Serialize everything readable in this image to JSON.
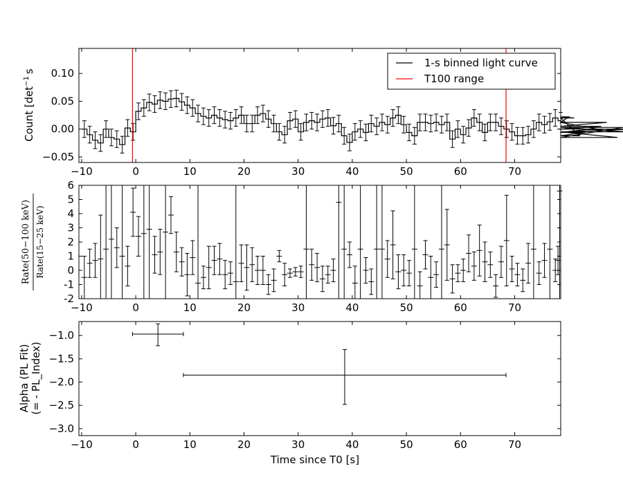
{
  "chart_data": [
    {
      "type": "line",
      "ylabel": "Count [det$^{-1}$ s$^{-1}$]",
      "ylabel_main": "Count [det",
      "ylabel_sup": "−1",
      "ylabel_tail": "s",
      "xlim": [
        -10.5,
        78.5
      ],
      "ylim": [
        -0.06,
        0.145
      ],
      "xticks": [
        -10,
        0,
        10,
        20,
        30,
        40,
        50,
        60,
        70
      ],
      "yticks": [
        0.1,
        0.05,
        0.0,
        -0.05
      ],
      "ytick_labels": [
        "0.10",
        "0.05",
        "0.00",
        "−0.05"
      ],
      "legend": [
        "1-s binned light curve",
        "T100 range"
      ],
      "legend_position": "top-right",
      "t100_range": [
        -0.6,
        68.4
      ],
      "bin_start": -10,
      "counts": [
        0.0,
        -0.01,
        -0.02,
        -0.025,
        0.0,
        -0.015,
        -0.018,
        -0.028,
        0.002,
        -0.005,
        0.032,
        0.038,
        0.048,
        0.045,
        0.052,
        0.05,
        0.054,
        0.055,
        0.049,
        0.043,
        0.038,
        0.028,
        0.023,
        0.02,
        0.025,
        0.02,
        0.017,
        0.015,
        0.02,
        0.025,
        0.01,
        0.01,
        0.025,
        0.028,
        0.018,
        0.01,
        -0.005,
        -0.01,
        0.015,
        0.018,
        -0.005,
        0.012,
        0.015,
        0.012,
        0.018,
        0.02,
        0.006,
        0.01,
        -0.012,
        -0.024,
        -0.005,
        0.0,
        -0.006,
        0.01,
        0.005,
        0.012,
        0.008,
        0.02,
        0.025,
        0.008,
        -0.006,
        -0.012,
        0.012,
        0.012,
        0.01,
        0.012,
        0.008,
        0.012,
        -0.018,
        0.0,
        -0.01,
        0.002,
        0.02,
        0.012,
        -0.006,
        0.012,
        0.012,
        0.005,
        0.0,
        -0.005,
        -0.012,
        -0.012,
        -0.01,
        0.0,
        0.012,
        0.008,
        0.013,
        0.02,
        0.015,
        0.012,
        0.022,
        0.02,
        -0.012,
        -0.006,
        0.0,
        0.0,
        0.005,
        0.012,
        -0.005,
        -0.015,
        0.003,
        -0.005,
        0.0
      ],
      "errors": 0.015
    },
    {
      "type": "scatter",
      "ylabel_numerator": "Rate(50−100 keV)",
      "ylabel_denominator": "Rate(15−25 keV)",
      "xlim": [
        -10.5,
        78.5
      ],
      "ylim": [
        -2,
        6
      ],
      "xticks": [
        -10,
        0,
        10,
        20,
        30,
        40,
        50,
        60,
        70
      ],
      "yticks": [
        6,
        5,
        4,
        3,
        2,
        1,
        0,
        -1,
        -2
      ],
      "points": [
        {
          "x": -9.5,
          "y": -0.5,
          "e": 1.5
        },
        {
          "x": -8.5,
          "y": 0.5,
          "e": 1.0
        },
        {
          "x": -7.5,
          "y": 0.7,
          "e": 1.2
        },
        {
          "x": -6.5,
          "y": 0.8,
          "e": 3.1
        },
        {
          "x": -5.5,
          "y": 1.5,
          "e": 8
        },
        {
          "x": -4.5,
          "y": 2.2,
          "e": 8
        },
        {
          "x": -3.5,
          "y": 1.6,
          "e": 1.4
        },
        {
          "x": -2.5,
          "y": 1.0,
          "e": 8
        },
        {
          "x": -1.5,
          "y": 0.3,
          "e": 1.4
        },
        {
          "x": -0.5,
          "y": 4.1,
          "e": 1.7
        },
        {
          "x": 0.5,
          "y": 2.4,
          "e": 1.4
        },
        {
          "x": 1.5,
          "y": 2.6,
          "e": 8
        },
        {
          "x": 2.5,
          "y": 2.9,
          "e": 8
        },
        {
          "x": 3.5,
          "y": 1.1,
          "e": 1.3
        },
        {
          "x": 4.5,
          "y": 1.3,
          "e": 1.6
        },
        {
          "x": 5.5,
          "y": 2.7,
          "e": 8
        },
        {
          "x": 6.5,
          "y": 3.9,
          "e": 1.3
        },
        {
          "x": 7.5,
          "y": 1.3,
          "e": 1.4
        },
        {
          "x": 8.5,
          "y": 0.6,
          "e": 1.0
        },
        {
          "x": 9.5,
          "y": -0.3,
          "e": 1.5
        },
        {
          "x": 10.5,
          "y": 0.9,
          "e": 1.2
        },
        {
          "x": 11.5,
          "y": -0.9,
          "e": 8
        },
        {
          "x": 12.5,
          "y": -0.5,
          "e": 0.8
        },
        {
          "x": 13.5,
          "y": 0.2,
          "e": 1.5
        },
        {
          "x": 14.5,
          "y": 0.7,
          "e": 1.0
        },
        {
          "x": 15.5,
          "y": 0.8,
          "e": 1.1
        },
        {
          "x": 16.5,
          "y": -0.3,
          "e": 1.0
        },
        {
          "x": 17.5,
          "y": -0.2,
          "e": 0.8
        },
        {
          "x": 18.5,
          "y": -0.8,
          "e": 8
        },
        {
          "x": 19.5,
          "y": 0.5,
          "e": 1.3
        },
        {
          "x": 20.5,
          "y": 0.2,
          "e": 1.6
        },
        {
          "x": 21.5,
          "y": 0.4,
          "e": 1.2
        },
        {
          "x": 22.5,
          "y": 0.0,
          "e": 1.0
        },
        {
          "x": 23.5,
          "y": 0.0,
          "e": 1.0
        },
        {
          "x": 24.5,
          "y": -1.0,
          "e": 0.7
        },
        {
          "x": 25.5,
          "y": -0.7,
          "e": 0.8
        },
        {
          "x": 26.5,
          "y": 1.0,
          "e": 0.4
        },
        {
          "x": 27.5,
          "y": -0.3,
          "e": 0.8
        },
        {
          "x": 28.5,
          "y": -0.2,
          "e": 0.3
        },
        {
          "x": 29.5,
          "y": -0.1,
          "e": 0.3
        },
        {
          "x": 30.5,
          "y": -0.1,
          "e": 0.4
        },
        {
          "x": 31.5,
          "y": 1.5,
          "e": 8
        },
        {
          "x": 32.5,
          "y": 0.4,
          "e": 1.1
        },
        {
          "x": 33.5,
          "y": 0.2,
          "e": 1.0
        },
        {
          "x": 34.5,
          "y": -0.6,
          "e": 0.9
        },
        {
          "x": 35.5,
          "y": -0.3,
          "e": 0.6
        },
        {
          "x": 36.5,
          "y": 0.0,
          "e": 0.8
        },
        {
          "x": 37.5,
          "y": 4.8,
          "e": 8
        },
        {
          "x": 38.5,
          "y": 1.5,
          "e": 8
        },
        {
          "x": 39.5,
          "y": 1.1,
          "e": 0.9
        },
        {
          "x": 40.5,
          "y": -0.9,
          "e": 1.2
        },
        {
          "x": 41.5,
          "y": 1.5,
          "e": 8
        },
        {
          "x": 42.5,
          "y": 0.0,
          "e": 0.9
        },
        {
          "x": 43.5,
          "y": -0.8,
          "e": 0.9
        },
        {
          "x": 44.5,
          "y": 1.5,
          "e": 8
        },
        {
          "x": 45.5,
          "y": 1.5,
          "e": 8
        },
        {
          "x": 46.5,
          "y": 0.8,
          "e": 1.3
        },
        {
          "x": 47.5,
          "y": 1.8,
          "e": 2.4
        },
        {
          "x": 48.5,
          "y": -0.1,
          "e": 1.2
        },
        {
          "x": 49.5,
          "y": 0.0,
          "e": 1.1
        },
        {
          "x": 50.5,
          "y": -0.2,
          "e": 0.9
        },
        {
          "x": 51.5,
          "y": 1.5,
          "e": 8
        },
        {
          "x": 52.5,
          "y": -1.1,
          "e": 1.0
        },
        {
          "x": 53.5,
          "y": 1.1,
          "e": 1.0
        },
        {
          "x": 54.5,
          "y": -0.5,
          "e": 1.5
        },
        {
          "x": 55.5,
          "y": -0.3,
          "e": 0.9
        },
        {
          "x": 56.5,
          "y": 1.5,
          "e": 8
        },
        {
          "x": 57.5,
          "y": 1.8,
          "e": 2.5
        },
        {
          "x": 58.5,
          "y": -0.6,
          "e": 1.0
        },
        {
          "x": 59.5,
          "y": -0.2,
          "e": 0.6
        },
        {
          "x": 60.5,
          "y": 0.0,
          "e": 0.8
        },
        {
          "x": 61.5,
          "y": 1.2,
          "e": 1.3
        },
        {
          "x": 62.5,
          "y": 0.3,
          "e": 1.0
        },
        {
          "x": 63.5,
          "y": 1.4,
          "e": 1.8
        },
        {
          "x": 64.5,
          "y": 0.6,
          "e": 1.4
        },
        {
          "x": 65.5,
          "y": 0.4,
          "e": 0.9
        },
        {
          "x": 66.5,
          "y": -1.1,
          "e": 0.8
        },
        {
          "x": 67.5,
          "y": 0.6,
          "e": 1.1
        },
        {
          "x": 68.5,
          "y": 2.1,
          "e": 3.2
        },
        {
          "x": 69.5,
          "y": 0.1,
          "e": 0.9
        },
        {
          "x": 70.5,
          "y": -0.3,
          "e": 0.8
        },
        {
          "x": 71.5,
          "y": -0.7,
          "e": 0.8
        },
        {
          "x": 72.5,
          "y": 0.5,
          "e": 1.4
        },
        {
          "x": 73.5,
          "y": 1.5,
          "e": 8
        },
        {
          "x": 74.5,
          "y": -0.2,
          "e": 0.8
        },
        {
          "x": 75.5,
          "y": 0.7,
          "e": 1.2
        },
        {
          "x": 76.5,
          "y": 1.5,
          "e": 8
        },
        {
          "x": 77.5,
          "y": 0.0,
          "e": 0.8
        },
        {
          "x": 78.0,
          "y": 0.7,
          "e": 1.0
        },
        {
          "x": 78.3,
          "y": 5.6,
          "e": 8
        }
      ]
    },
    {
      "type": "scatter",
      "ylabel_line1": "Alpha (PL Fit)",
      "ylabel_line2": "(= - PL_Index)",
      "xlabel": "Time since T0 [s]",
      "xlim": [
        -10.5,
        78.5
      ],
      "ylim": [
        -3.15,
        -0.7
      ],
      "xticks": [
        -10,
        0,
        10,
        20,
        30,
        40,
        50,
        60,
        70
      ],
      "yticks": [
        -1.0,
        -1.5,
        -2.0,
        -2.5,
        -3.0
      ],
      "ytick_labels": [
        "−1.0",
        "−1.5",
        "−2.0",
        "−2.5",
        "−3.0"
      ],
      "points": [
        {
          "x": 4.1,
          "x_lo": -0.6,
          "x_hi": 8.8,
          "y": -0.97,
          "y_lo": -1.22,
          "y_hi": -0.75
        },
        {
          "x": 38.6,
          "x_lo": 8.8,
          "x_hi": 68.4,
          "y": -1.85,
          "y_lo": -2.48,
          "y_hi": -1.3
        }
      ]
    }
  ],
  "xtick_labels": [
    "−10",
    "0",
    "10",
    "20",
    "30",
    "40",
    "50",
    "60",
    "70"
  ],
  "colors": {
    "curve": "#000000",
    "t100": "#ff0000"
  }
}
